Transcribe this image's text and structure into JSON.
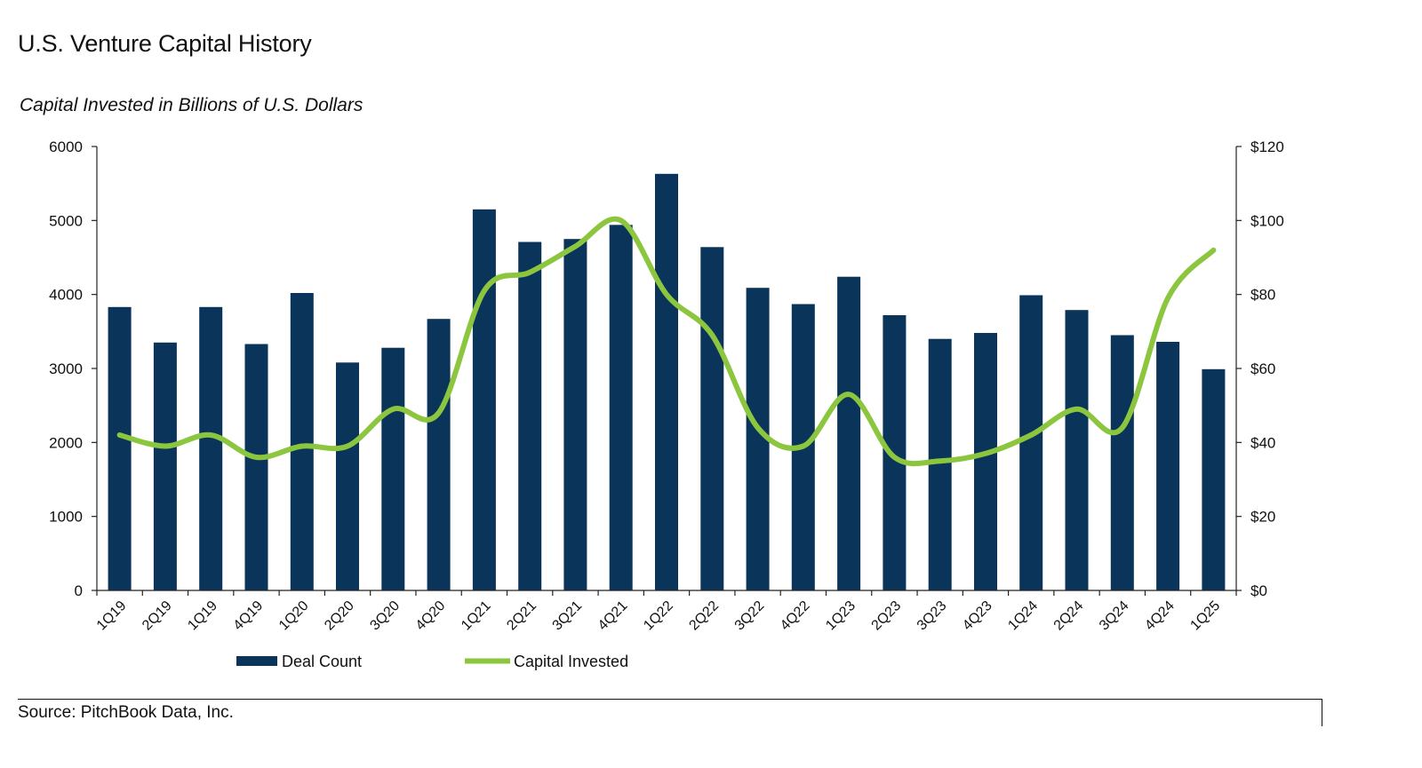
{
  "chart_data": {
    "type": "bar",
    "title": "U.S. Venture Capital History",
    "subtitle": "Capital Invested in Billions of U.S. Dollars",
    "categories": [
      "1Q19",
      "2Q19",
      "1Q19",
      "4Q19",
      "1Q20",
      "2Q20",
      "3Q20",
      "4Q20",
      "1Q21",
      "2Q21",
      "3Q21",
      "4Q21",
      "1Q22",
      "2Q22",
      "3Q22",
      "4Q22",
      "1Q23",
      "2Q23",
      "3Q23",
      "4Q23",
      "1Q24",
      "2Q24",
      "3Q24",
      "4Q24",
      "1Q25"
    ],
    "series": [
      {
        "name": "Deal Count",
        "type": "bar",
        "axis": "left",
        "color": "#0a3459",
        "values": [
          3830,
          3350,
          3830,
          3330,
          4020,
          3080,
          3280,
          3670,
          5150,
          4710,
          4750,
          4940,
          5630,
          4640,
          4090,
          3870,
          4240,
          3720,
          3400,
          3480,
          3990,
          3790,
          3450,
          3360,
          2990
        ]
      },
      {
        "name": "Capital Invested",
        "type": "line",
        "axis": "right",
        "color": "#8cc63f",
        "values": [
          42,
          39,
          42,
          36,
          39,
          39,
          49,
          48,
          81,
          86,
          93,
          100,
          80,
          69,
          44,
          39,
          53,
          36,
          35,
          37,
          42,
          49,
          44,
          79,
          92
        ]
      }
    ],
    "y_left": {
      "min": 0,
      "max": 6000,
      "ticks": [
        "0",
        "1000",
        "2000",
        "3000",
        "4000",
        "5000",
        "6000"
      ]
    },
    "y_right": {
      "min": 0,
      "max": 120,
      "ticks": [
        "$0",
        "$20",
        "$40",
        "$60",
        "$80",
        "$100",
        "$120"
      ]
    },
    "legend_position": "bottom-left",
    "grid": false
  },
  "legend": {
    "deal_count": "Deal Count",
    "capital_invested": "Capital Invested"
  },
  "source": "Source: PitchBook Data, Inc."
}
